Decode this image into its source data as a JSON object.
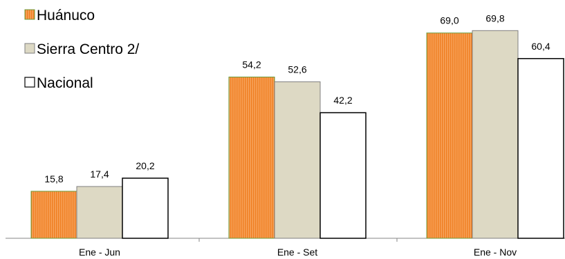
{
  "chart_data": {
    "type": "bar",
    "categories": [
      "Ene - Jun",
      "Ene - Set",
      "Ene - Nov"
    ],
    "series": [
      {
        "name": "Huánuco",
        "values": [
          15.8,
          54.2,
          69.0
        ],
        "labels": [
          "15,8",
          "54,2",
          "69,0"
        ],
        "color": "#f28c28",
        "stroke": "#6c9a3a",
        "pattern": "vertical-hatch"
      },
      {
        "name": "Sierra Centro 2/",
        "values": [
          17.4,
          52.6,
          69.8
        ],
        "labels": [
          "17,4",
          "52,6",
          "69,8"
        ],
        "color": "#ddd9c4",
        "stroke": "#7f7f7f",
        "pattern": "solid"
      },
      {
        "name": "Nacional",
        "values": [
          20.2,
          42.2,
          60.4
        ],
        "labels": [
          "20,2",
          "42,2",
          "60,4"
        ],
        "color": "#ffffff",
        "stroke": "#000000",
        "pattern": "solid"
      }
    ],
    "ylim": [
      0,
      75
    ],
    "grid": false,
    "legend_position": "top-left",
    "title": "",
    "xlabel": "",
    "ylabel": ""
  }
}
